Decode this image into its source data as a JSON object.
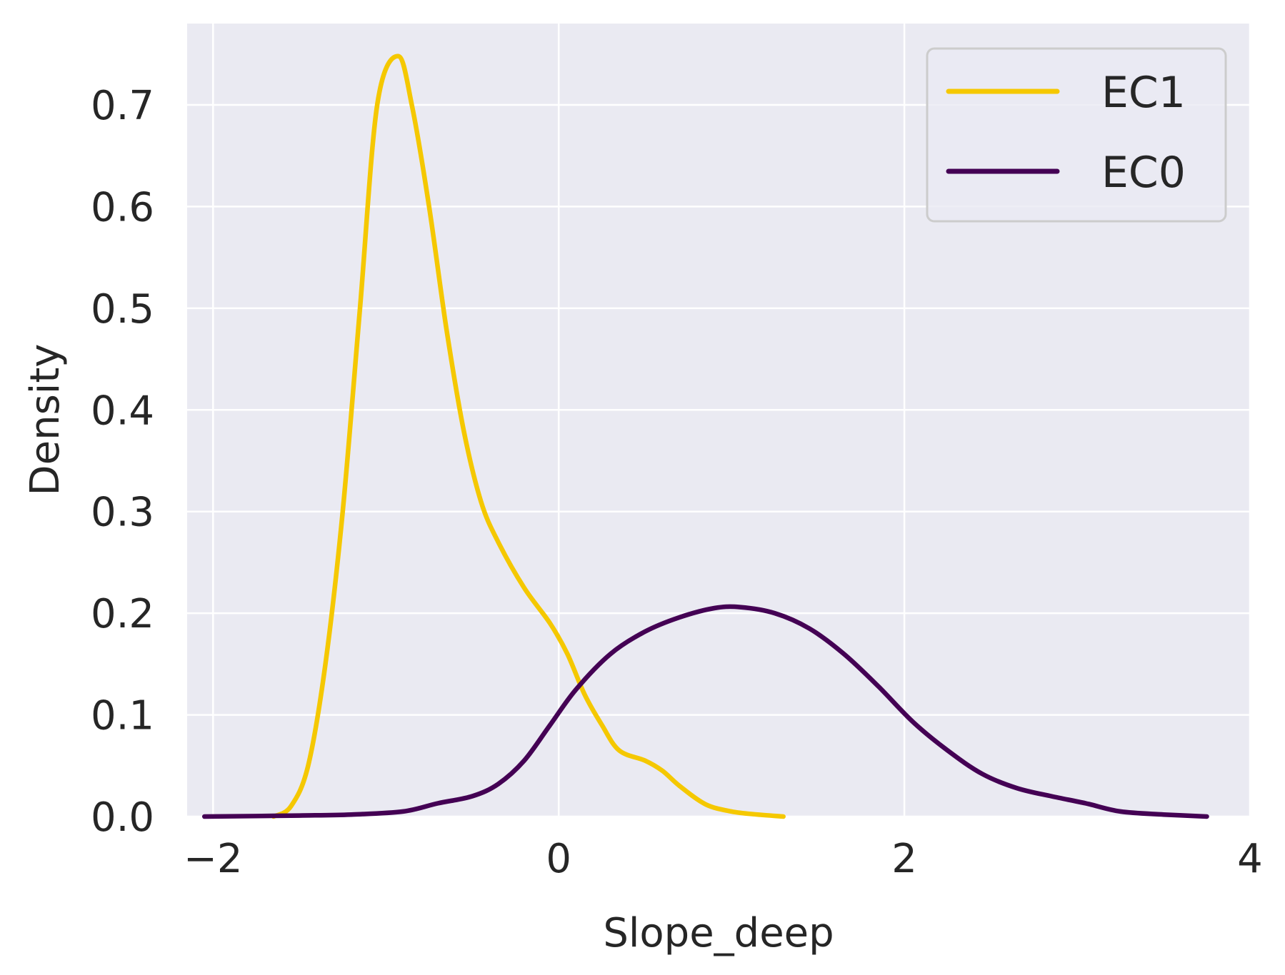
{
  "chart_data": {
    "type": "line",
    "xlabel": "Slope_deep",
    "ylabel": "Density",
    "xlim": [
      -2.15,
      4.0
    ],
    "ylim": [
      0.0,
      0.78
    ],
    "x_ticks": [
      {
        "value": -2,
        "label": "−2"
      },
      {
        "value": 0,
        "label": "0"
      },
      {
        "value": 2,
        "label": "2"
      },
      {
        "value": 4,
        "label": "4"
      }
    ],
    "y_ticks": [
      {
        "value": 0.0,
        "label": "0.0"
      },
      {
        "value": 0.1,
        "label": "0.1"
      },
      {
        "value": 0.2,
        "label": "0.2"
      },
      {
        "value": 0.3,
        "label": "0.3"
      },
      {
        "value": 0.4,
        "label": "0.4"
      },
      {
        "value": 0.5,
        "label": "0.5"
      },
      {
        "value": 0.6,
        "label": "0.6"
      },
      {
        "value": 0.7,
        "label": "0.7"
      }
    ],
    "grid": true,
    "legend_position": "top-right",
    "background_color": "#eaeaf2",
    "series": [
      {
        "name": "EC1",
        "color": "#f5c800",
        "points": [
          [
            -1.65,
            0.0
          ],
          [
            -1.55,
            0.01
          ],
          [
            -1.45,
            0.05
          ],
          [
            -1.35,
            0.15
          ],
          [
            -1.25,
            0.3
          ],
          [
            -1.15,
            0.5
          ],
          [
            -1.05,
            0.7
          ],
          [
            -0.93,
            0.748
          ],
          [
            -0.85,
            0.7
          ],
          [
            -0.75,
            0.6
          ],
          [
            -0.65,
            0.48
          ],
          [
            -0.55,
            0.38
          ],
          [
            -0.45,
            0.31
          ],
          [
            -0.35,
            0.27
          ],
          [
            -0.2,
            0.225
          ],
          [
            -0.05,
            0.19
          ],
          [
            0.05,
            0.16
          ],
          [
            0.15,
            0.12
          ],
          [
            0.25,
            0.09
          ],
          [
            0.35,
            0.065
          ],
          [
            0.5,
            0.055
          ],
          [
            0.6,
            0.045
          ],
          [
            0.7,
            0.03
          ],
          [
            0.85,
            0.012
          ],
          [
            1.0,
            0.005
          ],
          [
            1.15,
            0.002
          ],
          [
            1.3,
            0.0
          ]
        ]
      },
      {
        "name": "EC0",
        "color": "#440154",
        "points": [
          [
            -2.05,
            0.0
          ],
          [
            -1.5,
            0.001
          ],
          [
            -1.2,
            0.002
          ],
          [
            -0.9,
            0.005
          ],
          [
            -0.7,
            0.013
          ],
          [
            -0.5,
            0.02
          ],
          [
            -0.35,
            0.032
          ],
          [
            -0.2,
            0.055
          ],
          [
            -0.05,
            0.09
          ],
          [
            0.1,
            0.125
          ],
          [
            0.3,
            0.16
          ],
          [
            0.5,
            0.182
          ],
          [
            0.7,
            0.196
          ],
          [
            0.9,
            0.205
          ],
          [
            1.05,
            0.206
          ],
          [
            1.25,
            0.2
          ],
          [
            1.45,
            0.185
          ],
          [
            1.65,
            0.16
          ],
          [
            1.85,
            0.128
          ],
          [
            2.05,
            0.093
          ],
          [
            2.25,
            0.065
          ],
          [
            2.45,
            0.042
          ],
          [
            2.65,
            0.028
          ],
          [
            2.85,
            0.02
          ],
          [
            3.05,
            0.013
          ],
          [
            3.25,
            0.005
          ],
          [
            3.5,
            0.002
          ],
          [
            3.75,
            0.0
          ]
        ]
      }
    ]
  }
}
